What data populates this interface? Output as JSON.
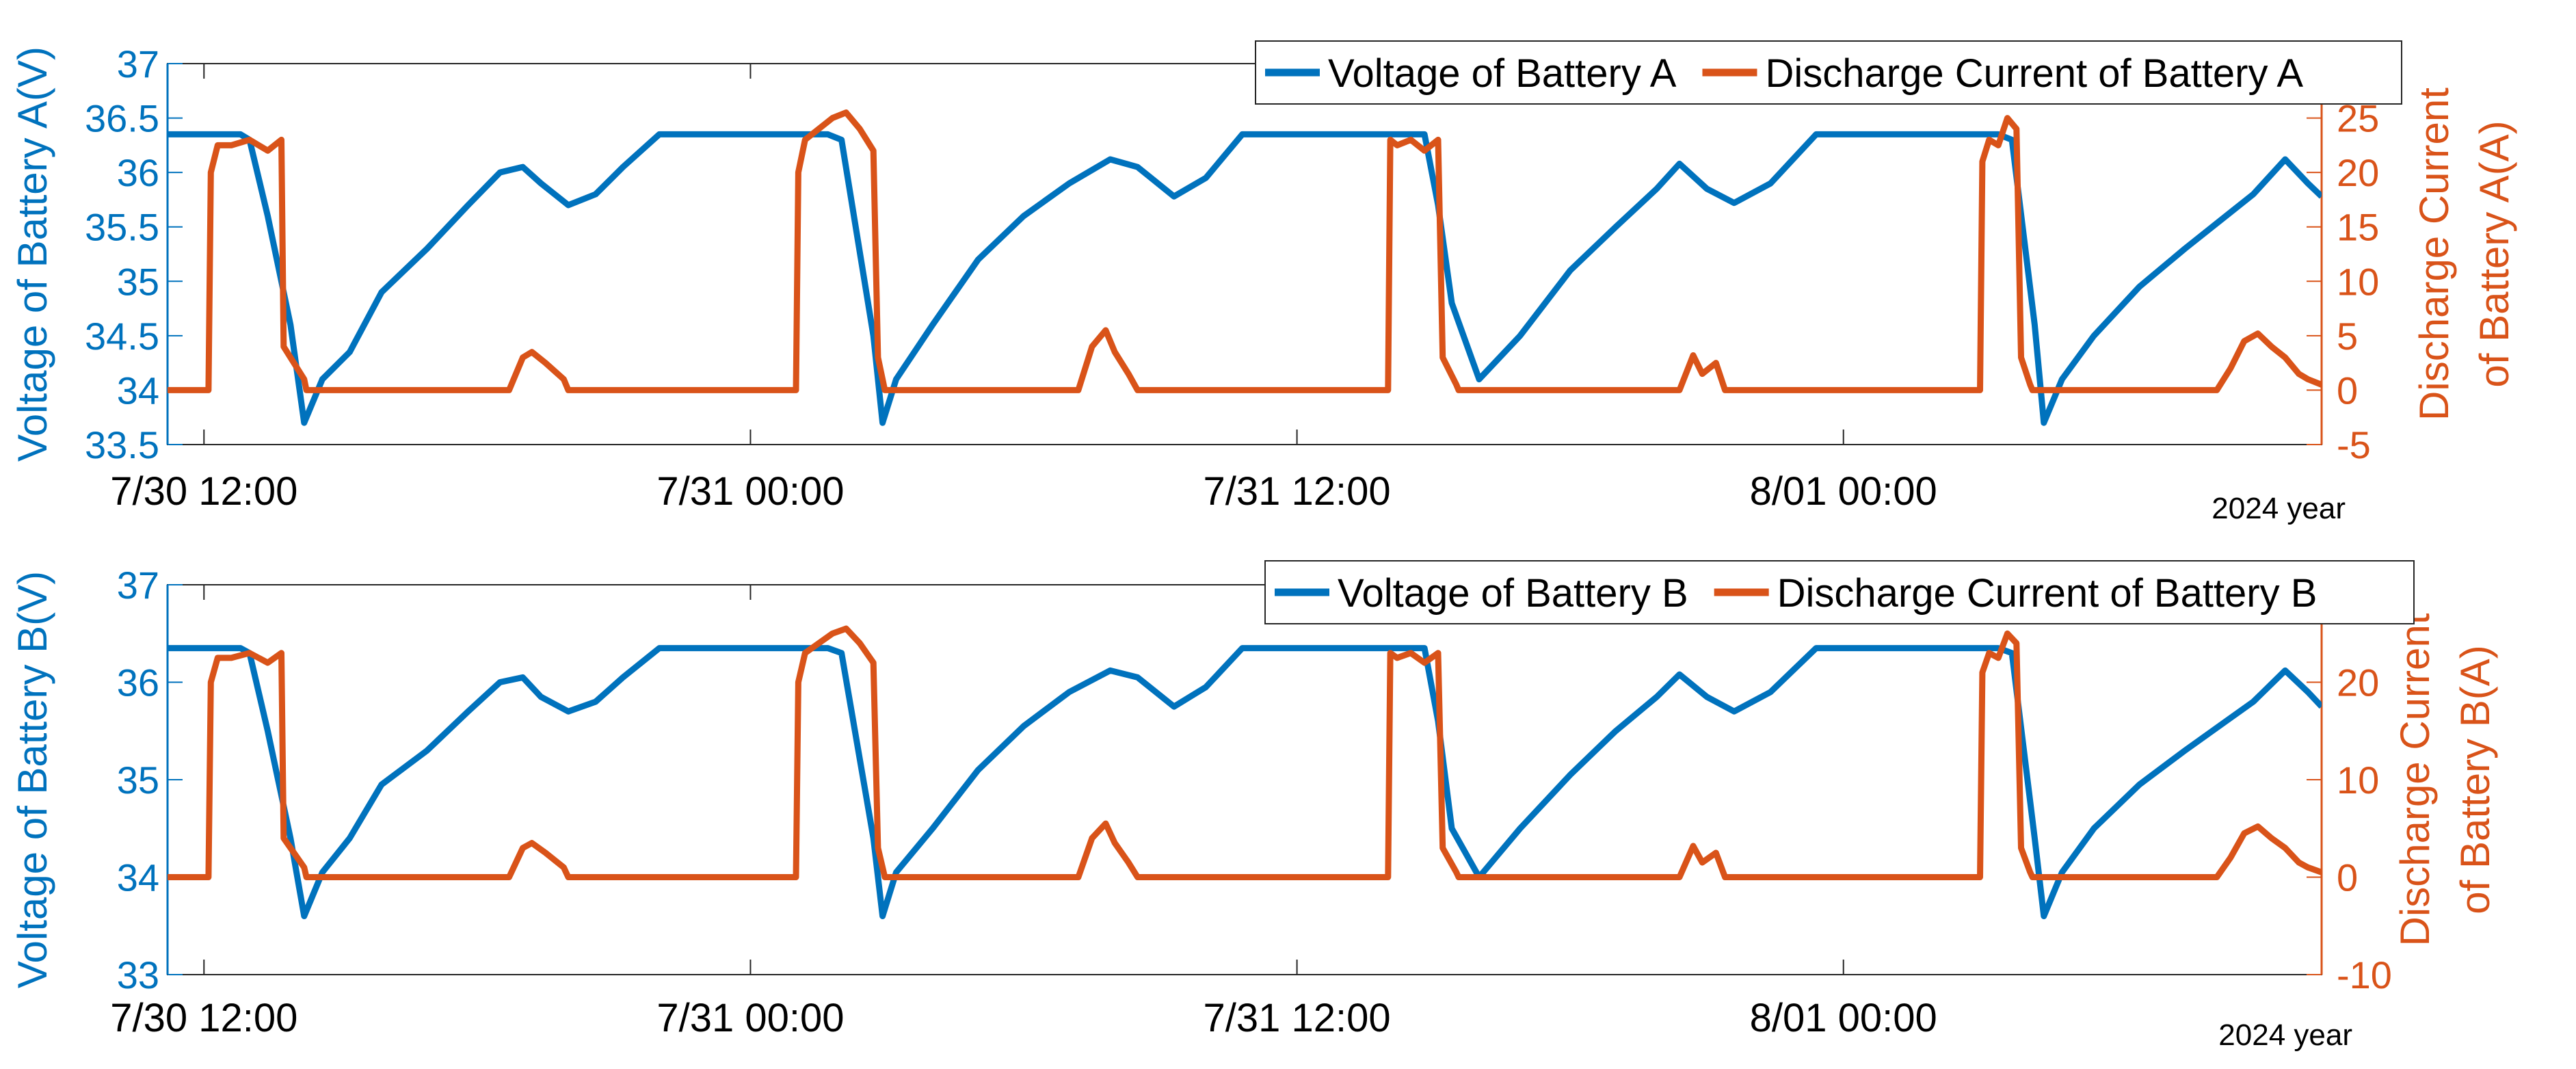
{
  "chart_data": [
    {
      "type": "line",
      "panel": "A",
      "x_unit": "hours from 7/30 00:00",
      "xlim": [
        11.2,
        58.5
      ],
      "x_ticks": [
        12,
        24,
        36,
        48
      ],
      "x_tick_labels": [
        "7/30 12:00",
        "7/31 00:00",
        "7/31 12:00",
        "8/01 00:00"
      ],
      "x_note": "2024 year",
      "ylabel_left": "Voltage of Battery A(V)",
      "ylim_left": [
        33.5,
        37
      ],
      "y_ticks_left": [
        33.5,
        34,
        34.5,
        35,
        35.5,
        36,
        36.5,
        37
      ],
      "ylabel_right": "Discharge Current  of Battery  A(A)",
      "ylim_right": [
        -5,
        30
      ],
      "y_ticks_right": [
        -5,
        0,
        5,
        10,
        15,
        20,
        25
      ],
      "legend_position": "top-right",
      "grid": false,
      "series": [
        {
          "name": "Voltage of Battery A",
          "axis": "left",
          "color": "#0072BD",
          "x": [
            11.2,
            12.8,
            13.0,
            13.4,
            13.9,
            14.2,
            14.6,
            15.2,
            15.9,
            16.9,
            17.8,
            18.5,
            19.0,
            19.4,
            20.0,
            20.6,
            21.2,
            22.0,
            22.9,
            23.8,
            24.6,
            25.7,
            26.0,
            26.7,
            26.9,
            27.2,
            28.0,
            29.0,
            30.0,
            31.0,
            31.9,
            32.5,
            33.3,
            34.0,
            34.8,
            35.6,
            36.3,
            37.3,
            38.8,
            39.1,
            39.4,
            40.0,
            40.9,
            42.0,
            43.0,
            43.9,
            44.4,
            45.0,
            45.6,
            46.4,
            47.4,
            48.4,
            49.2,
            51.4,
            51.7,
            52.2,
            52.4,
            52.8,
            53.5,
            54.5,
            55.5,
            56.4,
            57.0,
            57.7,
            58.2,
            58.5
          ],
          "y": [
            36.35,
            36.35,
            36.3,
            35.6,
            34.6,
            33.7,
            34.1,
            34.35,
            34.9,
            35.3,
            35.7,
            36.0,
            36.05,
            35.9,
            35.7,
            35.8,
            36.05,
            36.35,
            36.35,
            36.35,
            36.35,
            36.35,
            36.3,
            34.5,
            33.7,
            34.1,
            34.6,
            35.2,
            35.6,
            35.9,
            36.12,
            36.05,
            35.78,
            35.95,
            36.35,
            36.35,
            36.35,
            36.35,
            36.35,
            35.7,
            34.8,
            34.1,
            34.5,
            35.1,
            35.5,
            35.85,
            36.08,
            35.85,
            35.72,
            35.9,
            36.35,
            36.35,
            36.35,
            36.35,
            36.3,
            34.6,
            33.7,
            34.1,
            34.5,
            34.95,
            35.3,
            35.6,
            35.8,
            36.12,
            35.9,
            35.78
          ]
        },
        {
          "name": "Discharge Current  of Battery  A",
          "axis": "right",
          "color": "#D95319",
          "x": [
            11.2,
            12.1,
            12.15,
            12.3,
            12.6,
            13.0,
            13.4,
            13.7,
            13.75,
            14.2,
            14.25,
            18.7,
            19.0,
            19.2,
            19.5,
            19.9,
            20.0,
            25.0,
            25.05,
            25.2,
            25.5,
            25.8,
            26.1,
            26.4,
            26.7,
            26.8,
            26.9,
            26.95,
            31.2,
            31.5,
            31.8,
            32.0,
            32.3,
            32.5,
            38.0,
            38.05,
            38.2,
            38.5,
            38.8,
            39.1,
            39.2,
            39.5,
            39.55,
            44.4,
            44.7,
            44.9,
            45.2,
            45.4,
            51.0,
            51.05,
            51.2,
            51.4,
            51.6,
            51.8,
            51.9,
            52.1,
            52.15,
            56.2,
            56.5,
            56.8,
            57.1,
            57.4,
            57.7,
            58.0,
            58.2,
            58.5
          ],
          "y": [
            0,
            0,
            20,
            22.5,
            22.5,
            23,
            22,
            23,
            4,
            1,
            0,
            0,
            3,
            3.5,
            2.5,
            1,
            0,
            0,
            20,
            23,
            24,
            25,
            25.5,
            24,
            22,
            3,
            1,
            0,
            0,
            4,
            5.5,
            3.5,
            1.5,
            0,
            0,
            23,
            22.5,
            23,
            22,
            23,
            3,
            0.5,
            0,
            0,
            3.2,
            1.5,
            2.5,
            0,
            0,
            21,
            23,
            22.5,
            25,
            24,
            3,
            0.5,
            0,
            0,
            2,
            4.5,
            5.2,
            4,
            3,
            1.5,
            1,
            0.5
          ]
        }
      ]
    },
    {
      "type": "line",
      "panel": "B",
      "x_unit": "hours from 7/30 00:00",
      "xlim": [
        11.2,
        58.5
      ],
      "x_ticks": [
        12,
        24,
        36,
        48
      ],
      "x_tick_labels": [
        "7/30 12:00",
        "7/31 00:00",
        "7/31 12:00",
        "8/01 00:00"
      ],
      "x_note": "2024 year",
      "ylabel_left": "Voltage of Battery B(V)",
      "ylim_left": [
        33,
        37
      ],
      "y_ticks_left": [
        33,
        34,
        35,
        36,
        37
      ],
      "ylabel_right": "Discharge Current  of Battery  B(A)",
      "ylim_right": [
        -10,
        30
      ],
      "y_ticks_right": [
        -10,
        0,
        10,
        20
      ],
      "legend_position": "top-right",
      "grid": false,
      "series": [
        {
          "name": "Voltage of Battery B",
          "axis": "left",
          "color": "#0072BD",
          "x": [
            11.2,
            12.8,
            13.0,
            13.4,
            13.9,
            14.2,
            14.6,
            15.2,
            15.9,
            16.9,
            17.8,
            18.5,
            19.0,
            19.4,
            20.0,
            20.6,
            21.2,
            22.0,
            22.9,
            23.8,
            24.6,
            25.7,
            26.0,
            26.7,
            26.9,
            27.2,
            28.0,
            29.0,
            30.0,
            31.0,
            31.9,
            32.5,
            33.3,
            34.0,
            34.8,
            35.6,
            36.3,
            37.3,
            38.8,
            39.1,
            39.4,
            40.0,
            40.9,
            42.0,
            43.0,
            43.9,
            44.4,
            45.0,
            45.6,
            46.4,
            47.4,
            48.4,
            49.2,
            51.4,
            51.7,
            52.2,
            52.4,
            52.8,
            53.5,
            54.5,
            55.5,
            56.4,
            57.0,
            57.7,
            58.2,
            58.5
          ],
          "y": [
            36.35,
            36.35,
            36.3,
            35.5,
            34.4,
            33.6,
            34.05,
            34.4,
            34.95,
            35.3,
            35.7,
            36.0,
            36.05,
            35.85,
            35.7,
            35.8,
            36.05,
            36.35,
            36.35,
            36.35,
            36.35,
            36.35,
            36.3,
            34.4,
            33.6,
            34.05,
            34.5,
            35.1,
            35.55,
            35.9,
            36.12,
            36.05,
            35.75,
            35.95,
            36.35,
            36.35,
            36.35,
            36.35,
            36.35,
            35.6,
            34.5,
            34.0,
            34.5,
            35.05,
            35.5,
            35.85,
            36.08,
            35.85,
            35.7,
            35.9,
            36.35,
            36.35,
            36.35,
            36.35,
            36.3,
            34.4,
            33.6,
            34.05,
            34.5,
            34.95,
            35.3,
            35.6,
            35.8,
            36.12,
            35.9,
            35.75
          ]
        },
        {
          "name": "Discharge Current  of Battery  B",
          "axis": "right",
          "color": "#D95319",
          "x": [
            11.2,
            12.1,
            12.15,
            12.3,
            12.6,
            13.0,
            13.4,
            13.7,
            13.75,
            14.2,
            14.25,
            18.7,
            19.0,
            19.2,
            19.5,
            19.9,
            20.0,
            25.0,
            25.05,
            25.2,
            25.5,
            25.8,
            26.1,
            26.4,
            26.7,
            26.8,
            26.9,
            26.95,
            31.2,
            31.5,
            31.8,
            32.0,
            32.3,
            32.5,
            38.0,
            38.05,
            38.2,
            38.5,
            38.8,
            39.1,
            39.2,
            39.5,
            39.55,
            44.4,
            44.7,
            44.9,
            45.2,
            45.4,
            51.0,
            51.05,
            51.2,
            51.4,
            51.6,
            51.8,
            51.9,
            52.1,
            52.15,
            56.2,
            56.5,
            56.8,
            57.1,
            57.4,
            57.7,
            58.0,
            58.2,
            58.5
          ],
          "y": [
            0,
            0,
            20,
            22.5,
            22.5,
            23,
            22,
            23,
            4,
            1,
            0,
            0,
            3,
            3.5,
            2.5,
            1,
            0,
            0,
            20,
            23,
            24,
            25,
            25.5,
            24,
            22,
            3,
            1,
            0,
            0,
            4,
            5.5,
            3.5,
            1.5,
            0,
            0,
            23,
            22.5,
            23,
            22,
            23,
            3,
            0.5,
            0,
            0,
            3.2,
            1.5,
            2.5,
            0,
            0,
            21,
            23,
            22.5,
            25,
            24,
            3,
            0.5,
            0,
            0,
            2,
            4.5,
            5.2,
            4,
            3,
            1.5,
            1,
            0.5
          ]
        }
      ]
    }
  ]
}
